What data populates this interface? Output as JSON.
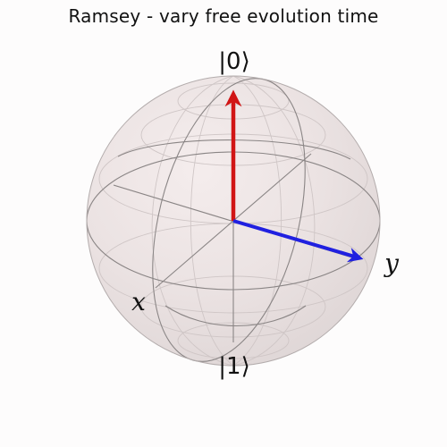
{
  "title": "Ramsey - vary free evolution time",
  "labels": {
    "north": "|0⟩",
    "south": "|1⟩",
    "x_axis": "x",
    "y_axis": "y"
  },
  "vectors": [
    {
      "name": "state-vector-red",
      "color": "#d11515"
    },
    {
      "name": "state-vector-blue",
      "color": "#2020e0"
    }
  ],
  "colors": {
    "sphere_fill": "#eadfdf",
    "wireframe": "#8a8585",
    "outline": "#9a9494"
  }
}
